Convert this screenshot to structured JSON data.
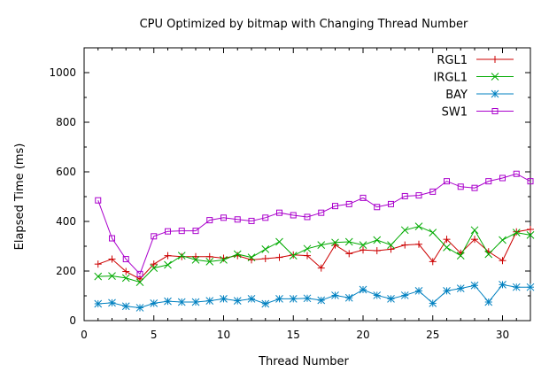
{
  "chart_data": {
    "type": "line",
    "title": "CPU Optimized by bitmap with Changing Thread Number",
    "xlabel": "Thread Number",
    "ylabel": "Elapsed Time (ms)",
    "xlim": [
      0,
      32
    ],
    "ylim": [
      0,
      1100
    ],
    "xticks": [
      0,
      5,
      10,
      15,
      20,
      25,
      30
    ],
    "yticks": [
      0,
      200,
      400,
      600,
      800,
      1000
    ],
    "grid": false,
    "legend_position": "top-right",
    "x": [
      1,
      2,
      3,
      4,
      5,
      6,
      7,
      8,
      9,
      10,
      11,
      12,
      13,
      14,
      15,
      16,
      17,
      18,
      19,
      20,
      21,
      22,
      23,
      24,
      25,
      26,
      27,
      28,
      29,
      30,
      31,
      32
    ],
    "series": [
      {
        "name": "RGL1",
        "color": "#cc0000",
        "marker": "plus",
        "values": [
          228,
          248,
          198,
          168,
          228,
          262,
          258,
          258,
          258,
          252,
          262,
          245,
          250,
          255,
          265,
          262,
          212,
          305,
          270,
          285,
          282,
          288,
          305,
          308,
          238,
          328,
          272,
          328,
          278,
          242,
          358,
          368
        ]
      },
      {
        "name": "IRGL1",
        "color": "#00aa00",
        "marker": "cross",
        "values": [
          178,
          180,
          172,
          155,
          212,
          225,
          262,
          245,
          238,
          245,
          268,
          255,
          288,
          318,
          262,
          290,
          305,
          315,
          318,
          305,
          325,
          305,
          365,
          380,
          355,
          295,
          262,
          365,
          268,
          325,
          355,
          345
        ]
      },
      {
        "name": "BAY",
        "color": "#0080c0",
        "marker": "star",
        "values": [
          68,
          72,
          58,
          52,
          70,
          78,
          75,
          75,
          80,
          88,
          80,
          88,
          68,
          88,
          88,
          90,
          82,
          102,
          92,
          125,
          102,
          88,
          102,
          120,
          70,
          120,
          130,
          142,
          75,
          145,
          135,
          135
        ]
      },
      {
        "name": "SW1",
        "color": "#aa00cc",
        "marker": "square",
        "values": [
          485,
          332,
          248,
          188,
          340,
          360,
          362,
          362,
          405,
          415,
          408,
          402,
          415,
          435,
          425,
          418,
          435,
          462,
          470,
          495,
          458,
          470,
          502,
          505,
          520,
          562,
          540,
          535,
          562,
          575,
          592,
          562
        ]
      }
    ]
  }
}
